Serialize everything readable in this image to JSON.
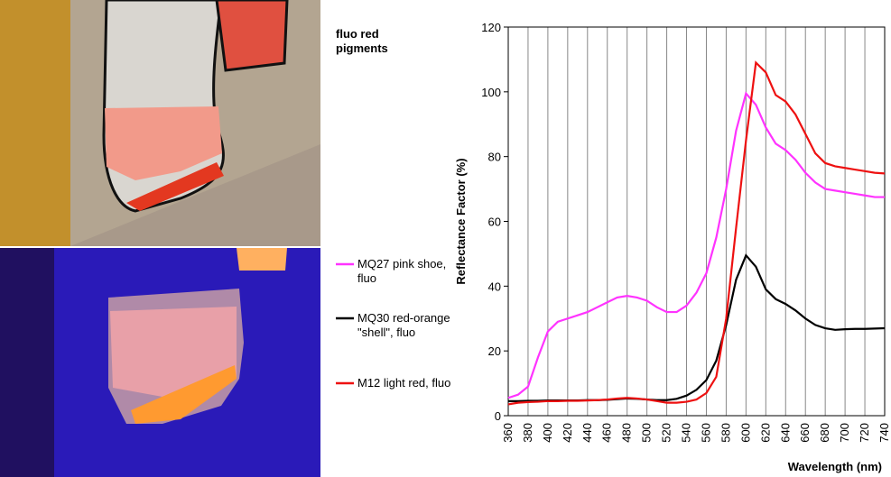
{
  "chart_data": {
    "type": "line",
    "title": "fluo red pigments",
    "x_label": "Wavelength (nm)",
    "y_label": "Reflectance Factor (%)",
    "x": [
      360,
      370,
      380,
      390,
      400,
      410,
      420,
      430,
      440,
      450,
      460,
      470,
      480,
      490,
      500,
      510,
      520,
      530,
      540,
      550,
      560,
      570,
      580,
      590,
      600,
      610,
      620,
      630,
      640,
      650,
      660,
      670,
      680,
      690,
      700,
      710,
      720,
      730,
      740
    ],
    "series": [
      {
        "name": "MQ27 pink shoe, fluo",
        "color": "#ff33ff",
        "values": [
          5.5,
          6.5,
          9,
          18,
          26,
          29,
          30,
          31,
          32,
          33.5,
          35,
          36.5,
          37,
          36.5,
          35.5,
          33.5,
          32,
          32,
          34,
          38,
          44,
          55,
          70,
          88,
          99.5,
          96,
          89,
          84,
          82,
          79,
          75,
          72,
          70,
          69.5,
          69,
          68.5,
          68,
          67.5,
          67.5
        ]
      },
      {
        "name": "MQ30 red-orange \"shell\", fluo",
        "color": "#000000",
        "values": [
          4.5,
          4.5,
          4.6,
          4.6,
          4.7,
          4.7,
          4.7,
          4.7,
          4.8,
          4.8,
          4.9,
          5.1,
          5.3,
          5.2,
          5,
          4.8,
          4.8,
          5.2,
          6.2,
          8,
          11,
          17,
          28,
          42,
          49.5,
          46,
          39,
          36,
          34.5,
          32.5,
          30,
          28,
          27,
          26.5,
          26.7,
          26.8,
          26.8,
          26.9,
          27
        ]
      },
      {
        "name": "M12 light red, fluo",
        "color": "#ee1111",
        "values": [
          3.5,
          4,
          4.2,
          4.3,
          4.5,
          4.5,
          4.6,
          4.6,
          4.7,
          4.8,
          5,
          5.3,
          5.5,
          5.3,
          5,
          4.5,
          4,
          4,
          4.3,
          5,
          7,
          12,
          30,
          58,
          85,
          109,
          106,
          99,
          97,
          93,
          87,
          81,
          78,
          77,
          76.5,
          76,
          75.5,
          75,
          74.8
        ]
      }
    ],
    "xlim": [
      360,
      740
    ],
    "xticks": [
      360,
      380,
      400,
      420,
      440,
      460,
      480,
      500,
      520,
      540,
      560,
      580,
      600,
      620,
      640,
      660,
      680,
      700,
      720,
      740
    ],
    "ylim": [
      0,
      120
    ],
    "yticks": [
      0,
      20,
      40,
      60,
      80,
      100,
      120
    ],
    "grid": true
  }
}
